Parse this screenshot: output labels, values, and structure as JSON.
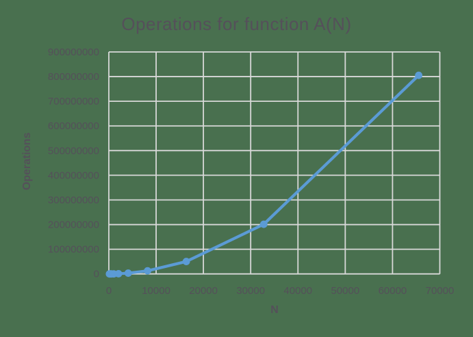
{
  "chart_data": {
    "type": "line",
    "title": "Operations for function A(N)",
    "xlabel": "N",
    "ylabel": "Operations",
    "xlim": [
      0,
      70000
    ],
    "ylim": [
      0,
      900000000
    ],
    "x_tick_interval": 10000,
    "y_tick_interval": 100000000,
    "x_tick_labels": [
      "0",
      "10000",
      "20000",
      "30000",
      "40000",
      "50000",
      "60000",
      "70000"
    ],
    "y_tick_labels": [
      "0",
      "100000000",
      "200000000",
      "300000000",
      "400000000",
      "500000000",
      "600000000",
      "700000000",
      "800000000",
      "900000000"
    ],
    "grid": true,
    "legend": "none",
    "marker": "circle",
    "series": [
      {
        "name": "Operations for function A(N)",
        "x": [
          128,
          256,
          512,
          1024,
          2048,
          4096,
          8192,
          16384,
          32768,
          65536
        ],
        "y": [
          3072,
          12288,
          49152,
          196608,
          786432,
          3145728,
          12582912,
          50331648,
          201326592,
          805306368
        ],
        "y_note": "values estimated from marker pixel positions; consistent with 3*N^2/16"
      }
    ],
    "colors": {
      "series_line": "#5B9BD5",
      "gridline": "#D9D9D9",
      "text": "#55505A",
      "background": "#49704F"
    }
  }
}
